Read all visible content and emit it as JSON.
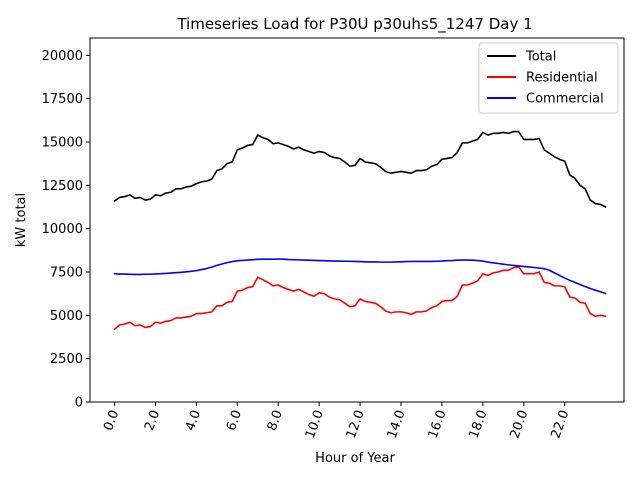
{
  "chart_data": {
    "type": "line",
    "title": "Timeseries Load for P30U p30uhs5_1247  Day 1",
    "xlabel": "Hour of Year",
    "ylabel": "kW total",
    "xlim": [
      -1.2,
      24.9
    ],
    "ylim": [
      0,
      21000
    ],
    "x_ticks": [
      0,
      2,
      4,
      6,
      8,
      10,
      12,
      14,
      16,
      18,
      20,
      22
    ],
    "x_tick_labels": [
      "0.0",
      "2.0",
      "4.0",
      "6.0",
      "8.0",
      "10.0",
      "12.0",
      "14.0",
      "16.0",
      "18.0",
      "20.0",
      "22.0"
    ],
    "y_ticks": [
      0,
      2500,
      5000,
      7500,
      10000,
      12500,
      15000,
      17500,
      20000
    ],
    "y_tick_labels": [
      "0",
      "2500",
      "5000",
      "7500",
      "10000",
      "12500",
      "15000",
      "17500",
      "20000"
    ],
    "legend_position": "top-right",
    "x_step": 0.25,
    "series": [
      {
        "name": "Total",
        "color": "#000000",
        "values": [
          11600,
          11800,
          11850,
          11950,
          11750,
          11800,
          11650,
          11700,
          11950,
          11900,
          12050,
          12100,
          12300,
          12300,
          12400,
          12450,
          12600,
          12700,
          12750,
          12850,
          13350,
          13450,
          13750,
          13850,
          14550,
          14650,
          14800,
          14850,
          15400,
          15250,
          15150,
          14900,
          14950,
          14850,
          14750,
          14600,
          14700,
          14550,
          14450,
          14350,
          14450,
          14400,
          14200,
          14100,
          14050,
          13850,
          13600,
          13650,
          14050,
          13850,
          13800,
          13750,
          13550,
          13300,
          13200,
          13250,
          13300,
          13250,
          13200,
          13350,
          13350,
          13400,
          13600,
          13700,
          14000,
          14050,
          14100,
          14400,
          14950,
          14950,
          15050,
          15150,
          15550,
          15400,
          15500,
          15500,
          15550,
          15500,
          15600,
          15600,
          15150,
          15150,
          15150,
          15200,
          14550,
          14350,
          14150,
          14000,
          13900,
          13100,
          12900,
          12500,
          12300,
          11650,
          11450,
          11400,
          11250
        ]
      },
      {
        "name": "Residential",
        "color": "#ff0000",
        "values": [
          4200,
          4450,
          4500,
          4600,
          4400,
          4450,
          4300,
          4350,
          4600,
          4550,
          4650,
          4700,
          4850,
          4850,
          4900,
          4950,
          5100,
          5100,
          5150,
          5200,
          5550,
          5550,
          5750,
          5800,
          6400,
          6450,
          6600,
          6650,
          7200,
          7050,
          6900,
          6700,
          6750,
          6600,
          6500,
          6400,
          6500,
          6350,
          6200,
          6100,
          6300,
          6250,
          6050,
          5950,
          5900,
          5700,
          5500,
          5550,
          5950,
          5800,
          5750,
          5700,
          5500,
          5250,
          5150,
          5200,
          5200,
          5150,
          5050,
          5200,
          5200,
          5250,
          5450,
          5550,
          5800,
          5850,
          5850,
          6100,
          6750,
          6750,
          6850,
          7000,
          7400,
          7300,
          7450,
          7500,
          7600,
          7600,
          7750,
          7800,
          7400,
          7400,
          7400,
          7500,
          6900,
          6850,
          6700,
          6700,
          6650,
          6050,
          6000,
          5750,
          5700,
          5100,
          4950,
          5000,
          4950
        ]
      },
      {
        "name": "Commercial",
        "color": "#0000ff",
        "values": [
          7400,
          7380,
          7380,
          7370,
          7360,
          7360,
          7370,
          7370,
          7390,
          7400,
          7420,
          7440,
          7460,
          7480,
          7510,
          7540,
          7580,
          7640,
          7700,
          7780,
          7880,
          7960,
          8040,
          8100,
          8150,
          8170,
          8190,
          8210,
          8230,
          8240,
          8240,
          8240,
          8250,
          8240,
          8220,
          8210,
          8200,
          8190,
          8180,
          8170,
          8160,
          8150,
          8140,
          8130,
          8130,
          8120,
          8120,
          8110,
          8100,
          8090,
          8080,
          8080,
          8070,
          8070,
          8070,
          8080,
          8090,
          8100,
          8110,
          8110,
          8110,
          8110,
          8110,
          8120,
          8130,
          8150,
          8160,
          8180,
          8190,
          8190,
          8180,
          8160,
          8130,
          8070,
          8030,
          7990,
          7950,
          7910,
          7880,
          7850,
          7820,
          7790,
          7760,
          7730,
          7690,
          7600,
          7450,
          7300,
          7150,
          7020,
          6900,
          6780,
          6660,
          6550,
          6450,
          6360,
          6260
        ]
      }
    ]
  }
}
